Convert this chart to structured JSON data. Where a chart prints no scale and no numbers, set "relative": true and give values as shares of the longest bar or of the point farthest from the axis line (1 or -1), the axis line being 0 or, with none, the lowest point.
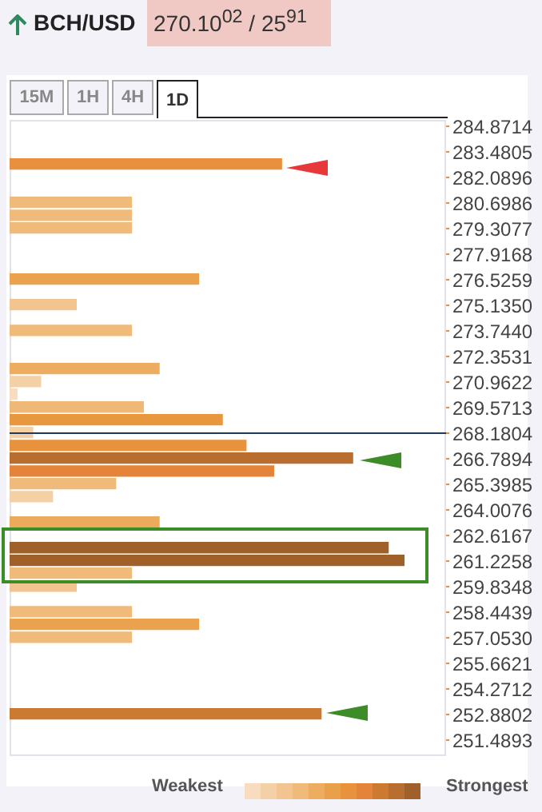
{
  "chart_data": {
    "type": "bar",
    "orientation": "horizontal",
    "relative": true,
    "title": "BCH/USD",
    "annotations": [
      "270.10$^{02}$ / 25$^{91}$",
      "15M",
      "1H",
      "4H",
      "1D",
      "Weakest",
      "Strongest"
    ],
    "x": [
      282.79,
      280.7,
      280.0,
      279.31,
      276.53,
      275.14,
      273.74,
      271.66,
      270.96,
      270.27,
      269.57,
      268.88,
      268.18,
      267.48,
      266.79,
      266.09,
      265.4,
      264.7,
      263.31,
      261.92,
      261.23,
      260.53,
      259.83,
      258.44,
      257.75,
      257.05,
      252.88
    ],
    "values": [
      0.69,
      0.31,
      0.31,
      0.31,
      0.48,
      0.17,
      0.31,
      0.38,
      0.08,
      0.02,
      0.34,
      0.54,
      0.06,
      0.6,
      0.87,
      0.67,
      0.27,
      0.11,
      0.38,
      0.96,
      1,
      0.31,
      0.17,
      0.31,
      0.48,
      0.31,
      0.79
    ],
    "colors": [
      "#e8903e",
      "#efba7a",
      "#efba7a",
      "#efba7a",
      "#eaa24e",
      "#f2c490",
      "#efba7a",
      "#ecad60",
      "#f4d0a6",
      "#f7dcc0",
      "#efb877",
      "#e9973f",
      "#f4d0a6",
      "#e8923c",
      "#b86e2e",
      "#e3843a",
      "#efba7a",
      "#f4d0a6",
      "#ecab5c",
      "#a0602a",
      "#a0602a",
      "#efba7a",
      "#f2c490",
      "#efba7a",
      "#eaa24e",
      "#efba7a",
      "#cc7a32"
    ],
    "ylim": [
      250.62,
      285.22
    ],
    "yticks": [
      284.8714,
      283.4805,
      282.0896,
      280.6986,
      279.3077,
      277.9168,
      276.5259,
      {
        "value": 275.135,
        "label": "275.1350"
      },
      {
        "value": 273.744,
        "label": "273.7440"
      },
      272.3531,
      270.9622,
      269.5713,
      268.1804,
      266.7894,
      265.3985,
      264.0076,
      262.6167,
      261.2258,
      259.8348,
      258.4439,
      {
        "value": 257.053,
        "label": "257.0530"
      },
      255.6621,
      254.2712,
      252.8802,
      251.4893
    ],
    "ref_lines": [
      {
        "axis": "y",
        "value": 268.1804,
        "color": "#1f3a5f"
      }
    ]
  }
}
